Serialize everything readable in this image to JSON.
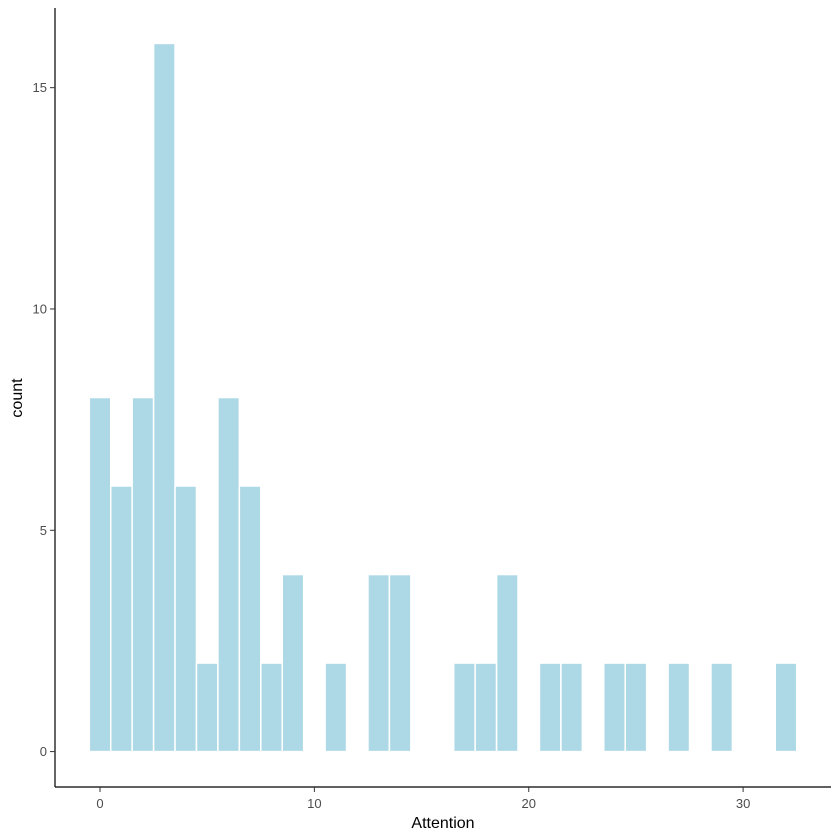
{
  "chart_data": {
    "type": "bar",
    "subtype": "histogram",
    "title": "",
    "xlabel": "Attention",
    "ylabel": "count",
    "bin_width": 1,
    "bin_centers": [
      0,
      1,
      2,
      3,
      4,
      5,
      6,
      7,
      8,
      9,
      10,
      11,
      12,
      13,
      14,
      15,
      16,
      17,
      18,
      19,
      20,
      21,
      22,
      23,
      24,
      25,
      26,
      27,
      28,
      29,
      30,
      31,
      32
    ],
    "counts": [
      8,
      6,
      8,
      16,
      6,
      2,
      8,
      6,
      2,
      4,
      0,
      2,
      0,
      4,
      4,
      0,
      0,
      2,
      2,
      4,
      0,
      2,
      2,
      0,
      2,
      2,
      0,
      2,
      0,
      2,
      0,
      0,
      2
    ],
    "xlim": [
      -2.1,
      34.1
    ],
    "ylim": [
      -0.8,
      16.8
    ],
    "x_ticks": [
      0,
      10,
      20,
      30
    ],
    "y_ticks": [
      0,
      5,
      10,
      15
    ],
    "fill_color": "#add8e6",
    "edge_color": "#ffffff",
    "grid": false,
    "legend": "none"
  }
}
